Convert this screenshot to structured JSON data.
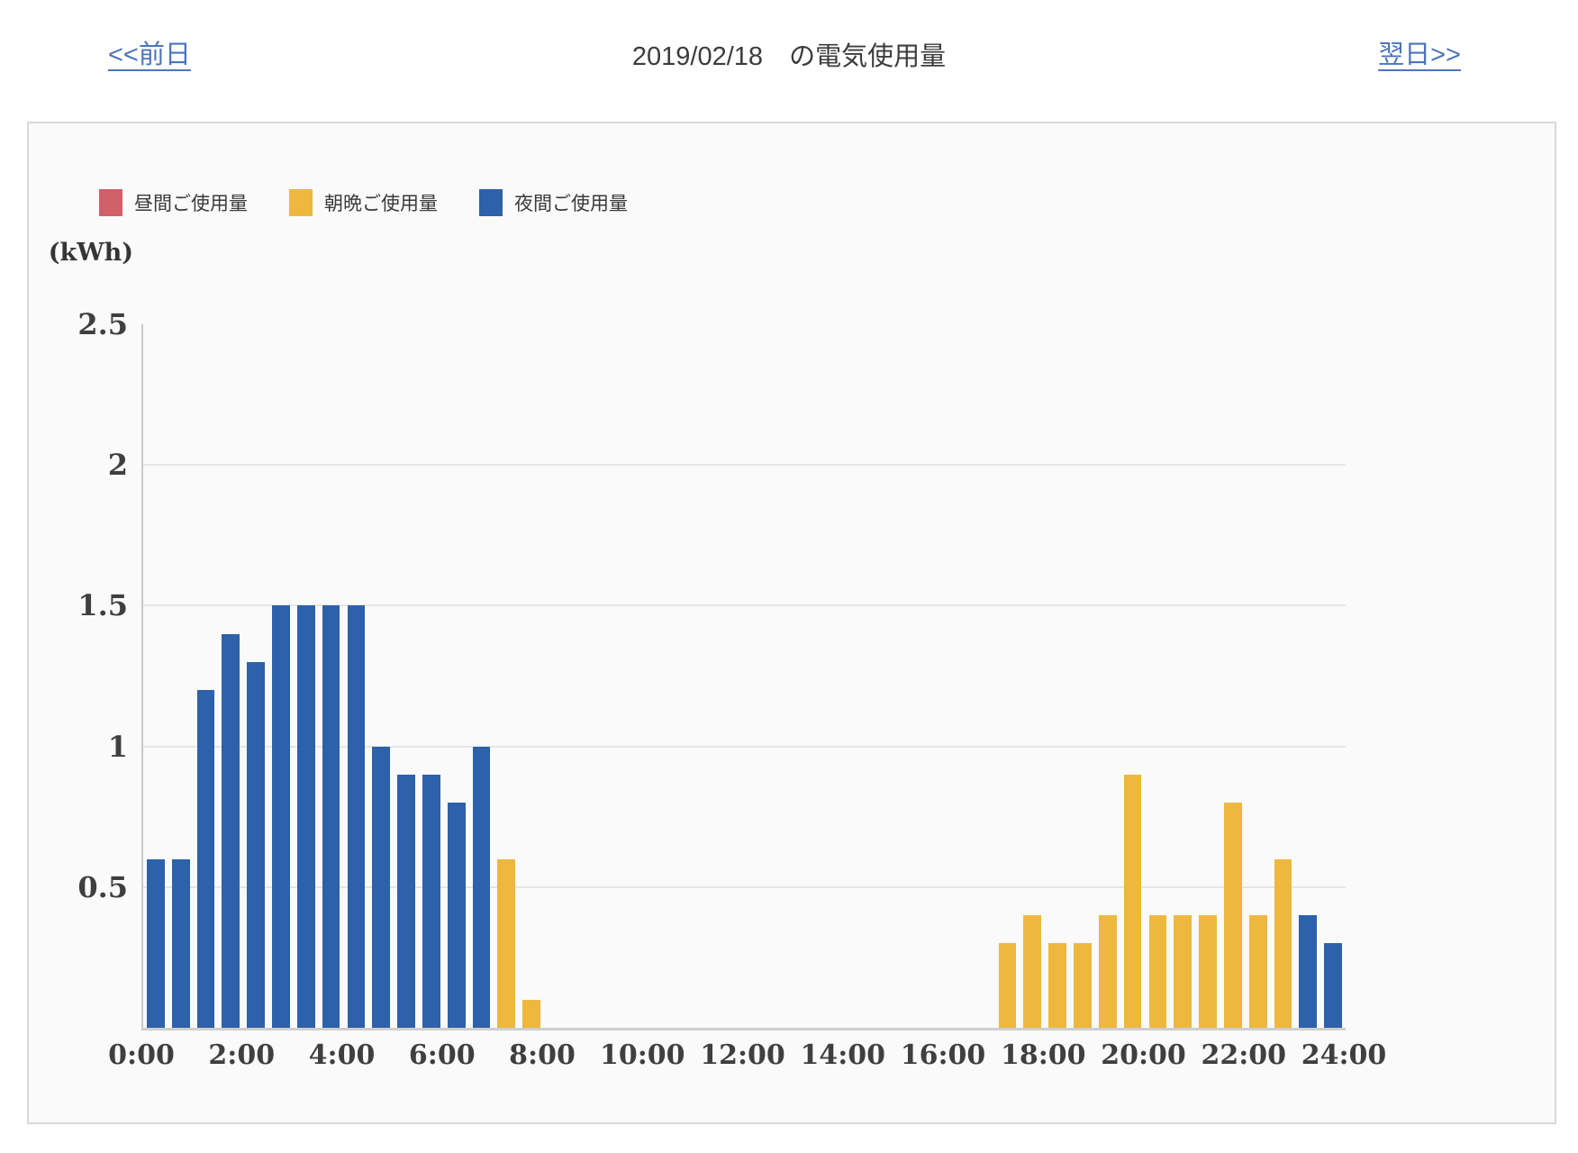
{
  "header": {
    "prev_link": "<<前日",
    "title": "2019/02/18　の電気使用量",
    "next_link": "翌日>>"
  },
  "legend": [
    {
      "key": "daytime",
      "label": "昼間ご使用量",
      "color": "#d0606a"
    },
    {
      "key": "morning_evening",
      "label": "朝晩ご使用量",
      "color": "#eeb73e"
    },
    {
      "key": "night",
      "label": "夜間ご使用量",
      "color": "#2d61a9"
    }
  ],
  "colors": {
    "link_blue": "#4d74ba",
    "daytime_red": "#d0606a",
    "morning_evening_yellow": "#eeb73e",
    "night_blue": "#2d61a9"
  },
  "chart_data": {
    "type": "bar",
    "title": "2019/02/18　の電気使用量",
    "ylabel": "(kWh)",
    "xlabel": "",
    "ylim": [
      0,
      2.5
    ],
    "y_ticks": [
      2.5,
      2,
      1.5,
      1,
      0.5
    ],
    "x_ticks": [
      "0:00",
      "2:00",
      "4:00",
      "6:00",
      "8:00",
      "10:00",
      "12:00",
      "14:00",
      "16:00",
      "18:00",
      "20:00",
      "22:00",
      "24:00"
    ],
    "slot_minutes": 30,
    "total_slots": 48,
    "grid": "horizontal-only",
    "legend_position": "top-left",
    "series_note": "one bar per 30-min slot, colored by tariff period; daytime series has no bars on this date",
    "bars": [
      {
        "time": "0:00",
        "value": 0.6,
        "series": "night"
      },
      {
        "time": "0:30",
        "value": 0.6,
        "series": "night"
      },
      {
        "time": "1:00",
        "value": 1.2,
        "series": "night"
      },
      {
        "time": "1:30",
        "value": 1.4,
        "series": "night"
      },
      {
        "time": "2:00",
        "value": 1.3,
        "series": "night"
      },
      {
        "time": "2:30",
        "value": 1.5,
        "series": "night"
      },
      {
        "time": "3:00",
        "value": 1.5,
        "series": "night"
      },
      {
        "time": "3:30",
        "value": 1.5,
        "series": "night"
      },
      {
        "time": "4:00",
        "value": 1.5,
        "series": "night"
      },
      {
        "time": "4:30",
        "value": 1.0,
        "series": "night"
      },
      {
        "time": "5:00",
        "value": 0.9,
        "series": "night"
      },
      {
        "time": "5:30",
        "value": 0.9,
        "series": "night"
      },
      {
        "time": "6:00",
        "value": 0.8,
        "series": "night"
      },
      {
        "time": "6:30",
        "value": 1.0,
        "series": "night"
      },
      {
        "time": "7:00",
        "value": 0.6,
        "series": "morning_evening"
      },
      {
        "time": "7:30",
        "value": 0.1,
        "series": "morning_evening"
      },
      {
        "time": "17:00",
        "value": 0.3,
        "series": "morning_evening"
      },
      {
        "time": "17:30",
        "value": 0.4,
        "series": "morning_evening"
      },
      {
        "time": "18:00",
        "value": 0.3,
        "series": "morning_evening"
      },
      {
        "time": "18:30",
        "value": 0.3,
        "series": "morning_evening"
      },
      {
        "time": "19:00",
        "value": 0.4,
        "series": "morning_evening"
      },
      {
        "time": "19:30",
        "value": 0.9,
        "series": "morning_evening"
      },
      {
        "time": "20:00",
        "value": 0.4,
        "series": "morning_evening"
      },
      {
        "time": "20:30",
        "value": 0.4,
        "series": "morning_evening"
      },
      {
        "time": "21:00",
        "value": 0.4,
        "series": "morning_evening"
      },
      {
        "time": "21:30",
        "value": 0.8,
        "series": "morning_evening"
      },
      {
        "time": "22:00",
        "value": 0.4,
        "series": "morning_evening"
      },
      {
        "time": "22:30",
        "value": 0.6,
        "series": "morning_evening"
      },
      {
        "time": "23:00",
        "value": 0.4,
        "series": "night"
      },
      {
        "time": "23:30",
        "value": 0.3,
        "series": "night"
      }
    ]
  }
}
